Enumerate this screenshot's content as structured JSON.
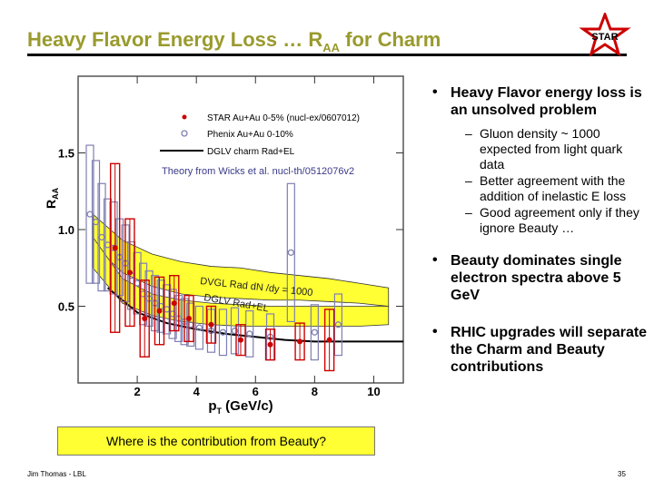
{
  "slide": {
    "title_main": "Heavy Flavor Energy Loss … R",
    "title_sub": "AA",
    "title_tail": " for Charm",
    "logo_text": "STAR",
    "footer_left": "Jim Thomas - LBL",
    "page_number": "35",
    "beauty_box": "Where is the contribution from Beauty?"
  },
  "bullets": [
    {
      "text": "Heavy Flavor energy loss is an unsolved problem",
      "subs": [
        "Gluon density ~ 1000 expected from light quark data",
        "Better agreement with the addition of inelastic E loss",
        "Good agreement only if they ignore Beauty …"
      ]
    },
    {
      "text": "Beauty dominates single electron spectra above 5 GeV",
      "subs": []
    },
    {
      "text": "RHIC upgrades will separate the Charm and Beauty contributions",
      "subs": []
    }
  ],
  "colors": {
    "title": "#9a9a2e",
    "star": "#cc0000",
    "phenix": "#7f7fb2",
    "band": "#ffff33",
    "beauty_box": "#ffff33"
  },
  "chart_data": {
    "type": "scatter",
    "xlabel_main": "p",
    "xlabel_sub": "T",
    "xlabel_tail": " (GeV/c)",
    "ylabel_main": "R",
    "ylabel_sub": "AA",
    "xlim": [
      0,
      11
    ],
    "ylim": [
      0,
      2.0
    ],
    "xticks": [
      2,
      4,
      6,
      8,
      10
    ],
    "yticks": [
      0.5,
      1.0,
      1.5
    ],
    "ytick_labels": [
      "0.5",
      "1.0",
      "1.5"
    ],
    "legend": {
      "star": "STAR Au+Au 0-5% (nucl-ex/0607012)",
      "phenix": "Phenix Au+Au 0-10%",
      "dglv": "DGLV charm Rad+EL"
    },
    "annotation_theory": "Theory from Wicks et al. nucl-th/0512076v2",
    "band_label_1": "DVGL Rad dN /dy = 1000",
    "band_label_2": "DGLV Rad+EL",
    "star": {
      "x": [
        1.25,
        1.75,
        2.25,
        2.75,
        3.25,
        3.75,
        4.5,
        5.5,
        6.5,
        7.5,
        8.5
      ],
      "y": [
        0.88,
        0.72,
        0.42,
        0.47,
        0.52,
        0.42,
        0.38,
        0.28,
        0.25,
        0.27,
        0.28
      ],
      "err": [
        0.55,
        0.35,
        0.25,
        0.22,
        0.18,
        0.15,
        0.12,
        0.1,
        0.1,
        0.12,
        0.2
      ]
    },
    "phenix": {
      "x": [
        0.4,
        0.6,
        0.8,
        1.0,
        1.2,
        1.4,
        1.6,
        1.8,
        2.0,
        2.2,
        2.4,
        2.6,
        2.8,
        3.0,
        3.2,
        3.4,
        3.6,
        3.8,
        4.1,
        4.5,
        4.9,
        5.3,
        5.8,
        6.5,
        7.2,
        8.0,
        8.8
      ],
      "y": [
        1.1,
        1.05,
        0.95,
        0.9,
        0.88,
        0.82,
        0.78,
        0.7,
        0.65,
        0.58,
        0.55,
        0.52,
        0.5,
        0.48,
        0.45,
        0.42,
        0.4,
        0.38,
        0.36,
        0.34,
        0.33,
        0.34,
        0.32,
        0.3,
        0.85,
        0.33,
        0.38
      ],
      "err": [
        0.45,
        0.4,
        0.35,
        0.3,
        0.3,
        0.25,
        0.25,
        0.22,
        0.2,
        0.2,
        0.18,
        0.18,
        0.17,
        0.16,
        0.16,
        0.15,
        0.15,
        0.14,
        0.14,
        0.14,
        0.15,
        0.15,
        0.15,
        0.15,
        0.45,
        0.18,
        0.2
      ]
    },
    "band_rad": {
      "x": [
        0.5,
        1.5,
        2.5,
        3.5,
        4.5,
        5.5,
        6.5,
        7.5,
        8.5,
        9.5,
        10.5
      ],
      "lo": [
        0.9,
        0.72,
        0.63,
        0.58,
        0.56,
        0.55,
        0.54,
        0.54,
        0.53,
        0.52,
        0.5
      ],
      "hi": [
        1.1,
        0.93,
        0.84,
        0.79,
        0.76,
        0.75,
        0.72,
        0.7,
        0.68,
        0.65,
        0.62
      ]
    },
    "band_radel": {
      "x": [
        0.5,
        1.5,
        2.5,
        3.5,
        4.5,
        5.5,
        6.5,
        7.5,
        8.5,
        9.5,
        10.5
      ],
      "lo": [
        0.75,
        0.52,
        0.44,
        0.4,
        0.38,
        0.37,
        0.37,
        0.37,
        0.37,
        0.37,
        0.38
      ],
      "hi": [
        0.95,
        0.68,
        0.58,
        0.54,
        0.52,
        0.51,
        0.5,
        0.5,
        0.5,
        0.5,
        0.5
      ]
    },
    "dglv_curve": {
      "x": [
        1.0,
        2.0,
        3.0,
        4.0,
        5.0,
        6.0,
        7.0,
        8.0,
        9.0,
        10.0,
        11.0
      ],
      "y": [
        0.62,
        0.46,
        0.39,
        0.35,
        0.32,
        0.3,
        0.28,
        0.27,
        0.27,
        0.27,
        0.27
      ]
    }
  }
}
